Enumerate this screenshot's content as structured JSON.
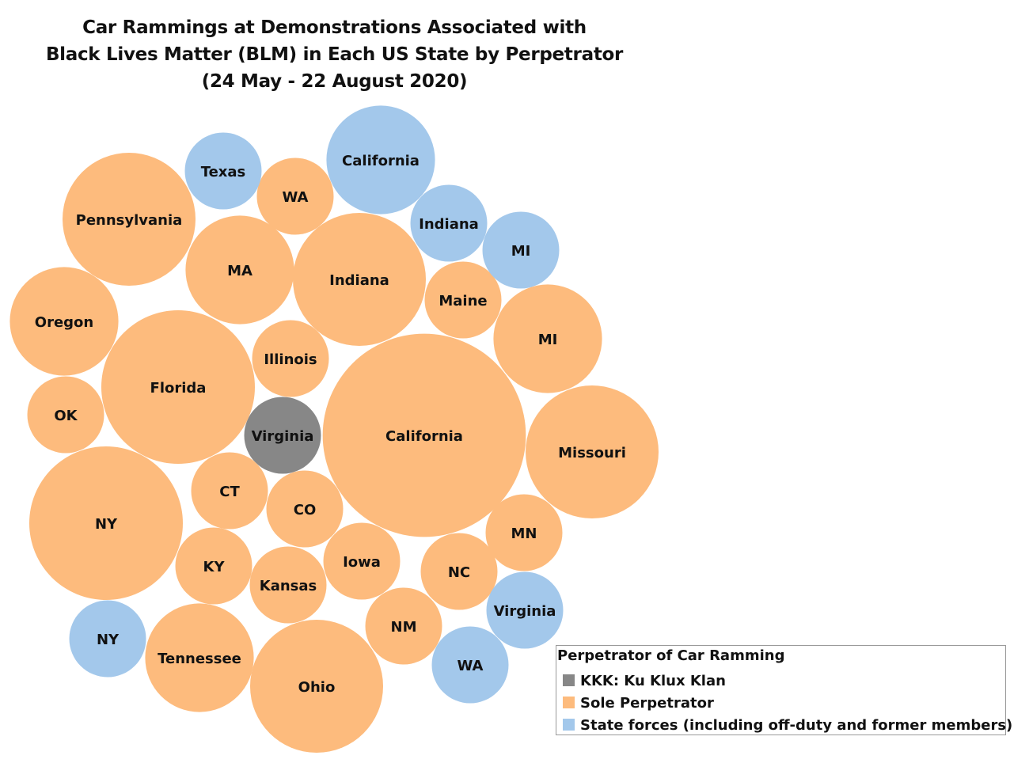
{
  "chart_data": {
    "type": "bubble",
    "title": [
      "Car Rammings at Demonstrations Associated with",
      "Black Lives Matter (BLM) in Each US State by Perpetrator",
      "(24 May - 22 August 2020)"
    ],
    "legend": {
      "title": "Perpetrator of Car Ramming",
      "placement": "bottom-right",
      "entries": [
        {
          "name": "KKK: Ku Klux Klan",
          "color": "#878787"
        },
        {
          "name": "Sole Perpetrator",
          "color": "#fdbb7d"
        },
        {
          "name": "State forces (including off-duty and former members)",
          "color": "#a3c8eb"
        }
      ]
    },
    "series": [
      {
        "name": "KKK: Ku Klux Klan",
        "points": [
          {
            "label": "Virginia",
            "value": 1
          }
        ]
      },
      {
        "name": "Sole Perpetrator",
        "points": [
          {
            "label": "Pennsylvania",
            "value": 3
          },
          {
            "label": "WA",
            "value": 1
          },
          {
            "label": "MA",
            "value": 2
          },
          {
            "label": "Indiana",
            "value": 3
          },
          {
            "label": "Oregon",
            "value": 2
          },
          {
            "label": "Maine",
            "value": 1
          },
          {
            "label": "Florida",
            "value": 4
          },
          {
            "label": "Illinois",
            "value": 1
          },
          {
            "label": "MI",
            "value": 2
          },
          {
            "label": "OK",
            "value": 1
          },
          {
            "label": "California",
            "value": 7
          },
          {
            "label": "Missouri",
            "value": 3
          },
          {
            "label": "NY",
            "value": 4
          },
          {
            "label": "CT",
            "value": 1
          },
          {
            "label": "CO",
            "value": 1
          },
          {
            "label": "MN",
            "value": 1
          },
          {
            "label": "KY",
            "value": 1
          },
          {
            "label": "Iowa",
            "value": 1
          },
          {
            "label": "NC",
            "value": 1
          },
          {
            "label": "Kansas",
            "value": 1
          },
          {
            "label": "NM",
            "value": 1
          },
          {
            "label": "Tennessee",
            "value": 2
          },
          {
            "label": "Ohio",
            "value": 3
          }
        ]
      },
      {
        "name": "State forces (including off-duty and former members)",
        "points": [
          {
            "label": "Texas",
            "value": 1
          },
          {
            "label": "California",
            "value": 2
          },
          {
            "label": "Indiana",
            "value": 1
          },
          {
            "label": "MI",
            "value": 1
          },
          {
            "label": "Virginia",
            "value": 1
          },
          {
            "label": "NY",
            "value": 1
          },
          {
            "label": "WA",
            "value": 1
          }
        ]
      }
    ]
  }
}
